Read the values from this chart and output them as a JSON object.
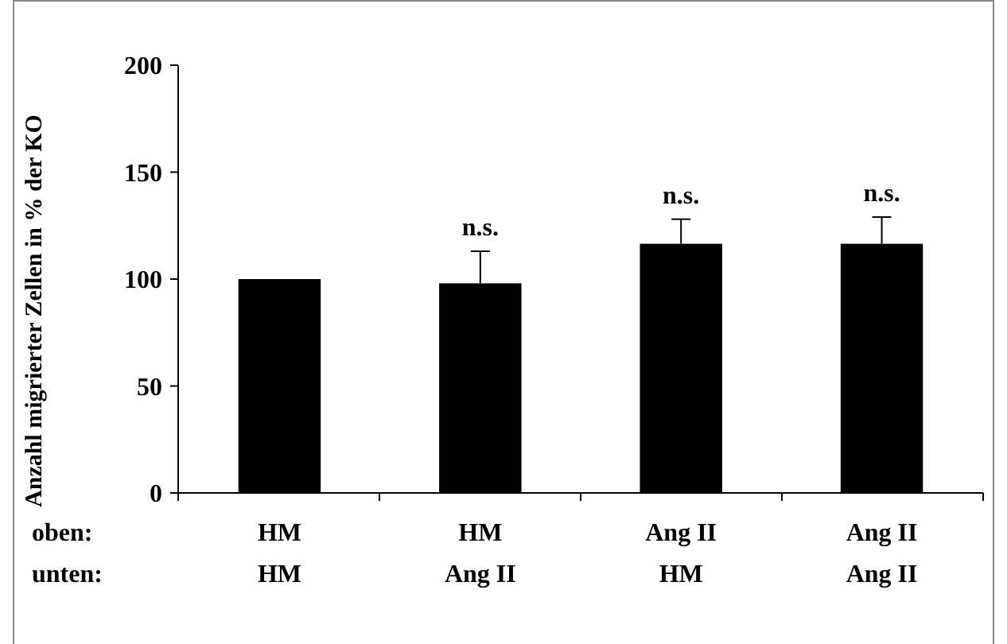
{
  "chart_data": {
    "type": "bar",
    "ylabel": "Anzahl migrierter Zellen in % der KO",
    "categories": [
      "HM\nHM",
      "HM\nAng II",
      "Ang II\nHM",
      "Ang II\nAng II"
    ],
    "values": [
      100,
      98,
      116.5,
      116.5
    ],
    "color": "#000000",
    "errors": [
      null,
      [
        98,
        113
      ],
      [
        116.5,
        128
      ],
      [
        116.5,
        129
      ]
    ],
    "ylim": [
      0,
      200
    ],
    "yticks": [
      0,
      50,
      100,
      150,
      200
    ],
    "grid": false,
    "annotations": [
      "oben:",
      "unten:",
      {
        "text": "n.s.",
        "x": "HM\nAng II",
        "y": 113
      },
      {
        "text": "n.s.",
        "x": "Ang II\nHM",
        "y": 128
      },
      {
        "text": "n.s.",
        "x": "Ang II\nAng II",
        "y": 129
      }
    ]
  }
}
